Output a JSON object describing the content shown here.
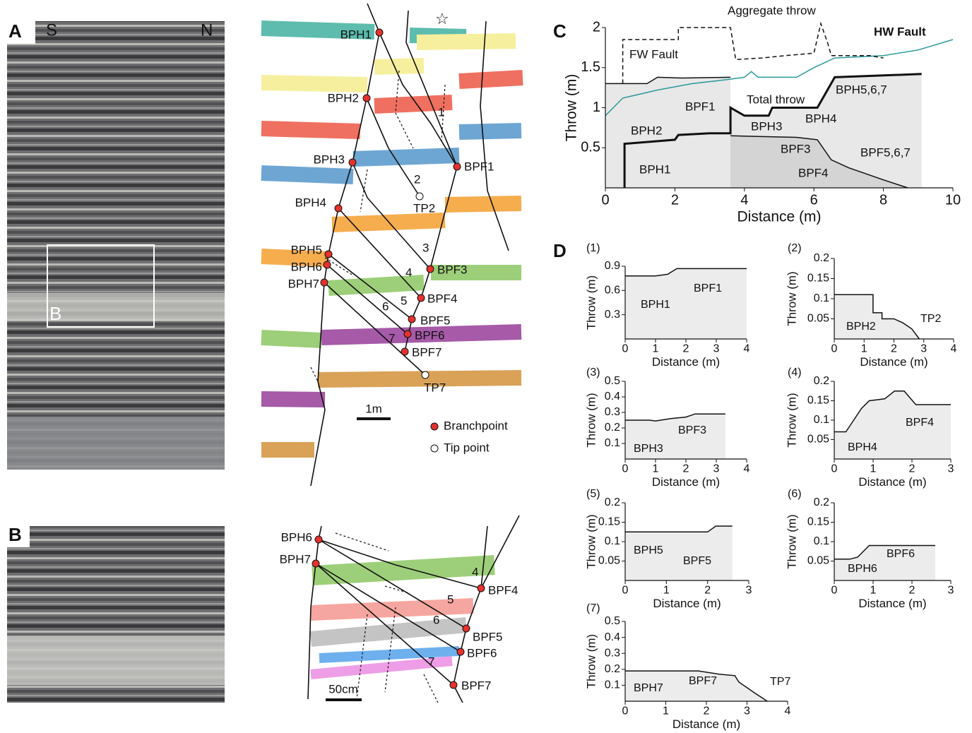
{
  "photo_a": {
    "label": "A",
    "south": "S",
    "north": "N",
    "inset": "B"
  },
  "photo_b": {
    "label": "B"
  },
  "section_a": {
    "points": [
      "BPH1",
      "BPH2",
      "BPH3",
      "BPH4",
      "BPH5",
      "BPH6",
      "BPH7",
      "BPF1",
      "BPF3",
      "BPF4",
      "BPF5",
      "BPF6",
      "BPF7",
      "TP2",
      "TP7"
    ],
    "fault_numbers": [
      "1",
      "2",
      "3",
      "4",
      "5",
      "6",
      "7"
    ],
    "star": "☆",
    "scale": "1m",
    "legend": [
      "Branchpoint",
      "Tip point"
    ]
  },
  "section_b": {
    "points": [
      "BPH6",
      "BPH7",
      "BPF4",
      "BPF5",
      "BPF6",
      "BPF7"
    ],
    "fault_numbers": [
      "4",
      "5",
      "6",
      "7"
    ],
    "scale": "50cm"
  },
  "panel_d_label": "D",
  "chart_data": [
    {
      "type": "line",
      "label": "C",
      "xlabel": "Distance (m)",
      "ylabel": "Throw (m)",
      "xlim": [
        0,
        10
      ],
      "xticks": [
        0,
        2,
        4,
        6,
        8,
        10
      ],
      "ylim": [
        0,
        2
      ],
      "yticks": [
        0.5,
        1,
        1.5,
        2
      ],
      "annotations": [
        "FW Fault",
        "Aggregate throw",
        "HW Fault",
        "Total throw",
        "BPF1",
        "BPH2",
        "BPH3",
        "BPH4",
        "BPF3",
        "BPF4",
        "BPF5,6,7",
        "BPH5,6,7",
        "BPH1"
      ],
      "series": [
        {
          "name": "FW Fault",
          "color": "#111111",
          "fill": "#e8e8e8",
          "x": [
            0,
            1.2,
            1.5,
            2.2,
            3.6
          ],
          "values": [
            1.3,
            1.3,
            1.38,
            1.37,
            1.38
          ]
        },
        {
          "name": "HW Fault",
          "color": "#111111",
          "fill": "#e8e8e8",
          "width": 3,
          "x": [
            0.55,
            0.55,
            2.0,
            2.1,
            3.0,
            3.6,
            3.6,
            4.0,
            4.7,
            4.8,
            6.1,
            6.6,
            9.1
          ],
          "values": [
            0,
            0.55,
            0.6,
            0.66,
            0.68,
            0.68,
            1.0,
            0.9,
            0.9,
            1.0,
            1.0,
            1.38,
            1.42
          ]
        },
        {
          "color": "#111111",
          "fill": "#d4d4d4",
          "x": [
            3.6,
            4.5,
            5.5,
            6.1,
            6.5,
            7.0,
            8.0,
            8.7
          ],
          "values": [
            0.65,
            0.64,
            0.63,
            0.6,
            0.35,
            0.25,
            0.1,
            0
          ]
        },
        {
          "name": "Total throw",
          "color": "#2a9a9a",
          "x": [
            0,
            0.5,
            1.5,
            2.5,
            3.5,
            4.0,
            4.2,
            4.4,
            5.5,
            6.0,
            6.6,
            8.0,
            9.0,
            10.0
          ],
          "values": [
            0.9,
            1.12,
            1.22,
            1.3,
            1.35,
            1.38,
            1.45,
            1.38,
            1.38,
            1.5,
            1.62,
            1.65,
            1.72,
            1.85
          ]
        },
        {
          "name": "Aggregate throw",
          "color": "#111111",
          "dashed": true,
          "x": [
            0.5,
            0.5,
            2.1,
            2.1,
            3.6,
            3.75,
            4.5,
            5.2,
            6.0,
            6.2,
            6.4,
            6.5,
            7.6,
            8.0
          ],
          "values": [
            1.3,
            1.85,
            1.85,
            2.0,
            2.0,
            1.6,
            1.62,
            1.65,
            1.68,
            2.05,
            1.8,
            1.65,
            1.65,
            1.62
          ]
        }
      ]
    },
    {
      "type": "line",
      "label": "(1)",
      "xlabel": "Distance (m)",
      "ylabel": "Throw (m)",
      "xlim": [
        0,
        4
      ],
      "xticks": [
        0,
        1,
        2,
        3,
        4
      ],
      "ylim": [
        0,
        0.9
      ],
      "yticks": [
        0.3,
        0.6,
        0.9
      ],
      "annotations": [
        "BPH1",
        "BPF1"
      ],
      "series": [
        {
          "color": "#111111",
          "fill": "#ececec",
          "x": [
            0,
            1,
            1.4,
            1.7,
            2.5,
            4
          ],
          "values": [
            0.78,
            0.78,
            0.8,
            0.87,
            0.87,
            0.87
          ]
        }
      ]
    },
    {
      "type": "line",
      "label": "(2)",
      "xlabel": "Distance (m)",
      "ylabel": "Throw (m)",
      "xlim": [
        0,
        4
      ],
      "xticks": [
        0,
        1,
        2,
        3,
        4
      ],
      "ylim": [
        0,
        0.2
      ],
      "yticks": [
        0.05,
        0.1,
        0.15,
        0.2
      ],
      "annotations": [
        "BPH2",
        "TP2"
      ],
      "series": [
        {
          "color": "#111111",
          "fill": "#ececec",
          "x": [
            0,
            1.3,
            1.3,
            1.6,
            1.6,
            2.0,
            2.3,
            2.6,
            2.85
          ],
          "values": [
            0.11,
            0.11,
            0.065,
            0.065,
            0.05,
            0.05,
            0.04,
            0.025,
            0
          ]
        }
      ]
    },
    {
      "type": "line",
      "label": "(3)",
      "xlabel": "Distance (m)",
      "ylabel": "Throw (m)",
      "xlim": [
        0,
        4
      ],
      "xticks": [
        0,
        1,
        2,
        3,
        4
      ],
      "ylim": [
        0,
        0.5
      ],
      "yticks": [
        0.1,
        0.2,
        0.3,
        0.4,
        0.5
      ],
      "annotations": [
        "BPH3",
        "BPF3"
      ],
      "series": [
        {
          "color": "#111111",
          "fill": "#ececec",
          "x": [
            0,
            0.8,
            1,
            1.5,
            2,
            2.3,
            3.3
          ],
          "values": [
            0.25,
            0.25,
            0.245,
            0.26,
            0.27,
            0.29,
            0.29
          ]
        }
      ]
    },
    {
      "type": "line",
      "label": "(4)",
      "xlabel": "Distance (m)",
      "ylabel": "Throw (m)",
      "xlim": [
        0,
        3
      ],
      "xticks": [
        0,
        1,
        2,
        3
      ],
      "ylim": [
        0,
        0.2
      ],
      "yticks": [
        0.05,
        0.1,
        0.15,
        0.2
      ],
      "annotations": [
        "BPH4",
        "BPF4"
      ],
      "series": [
        {
          "color": "#111111",
          "fill": "#ececec",
          "x": [
            0,
            0.3,
            0.5,
            0.7,
            0.9,
            1.3,
            1.55,
            1.8,
            2.1,
            3
          ],
          "values": [
            0.07,
            0.07,
            0.1,
            0.13,
            0.15,
            0.155,
            0.175,
            0.175,
            0.14,
            0.14
          ]
        }
      ]
    },
    {
      "type": "line",
      "label": "(5)",
      "xlabel": "Distance (m)",
      "ylabel": "Throw (m)",
      "xlim": [
        0,
        3
      ],
      "xticks": [
        0,
        1,
        2,
        3
      ],
      "ylim": [
        0,
        0.2
      ],
      "yticks": [
        0.05,
        0.1,
        0.15,
        0.2
      ],
      "annotations": [
        "BPH5",
        "BPF5"
      ],
      "series": [
        {
          "color": "#111111",
          "fill": "#ececec",
          "x": [
            0,
            0.8,
            2.0,
            2.2,
            2.6
          ],
          "values": [
            0.125,
            0.125,
            0.125,
            0.14,
            0.14
          ]
        }
      ]
    },
    {
      "type": "line",
      "label": "(6)",
      "xlabel": "Distance (m)",
      "ylabel": "Throw (m)",
      "xlim": [
        0,
        3
      ],
      "xticks": [
        0,
        1,
        2,
        3
      ],
      "ylim": [
        0,
        0.2
      ],
      "yticks": [
        0.05,
        0.1,
        0.15,
        0.2
      ],
      "annotations": [
        "BPH6",
        "BPF6"
      ],
      "series": [
        {
          "color": "#111111",
          "fill": "#ececec",
          "x": [
            0,
            0.4,
            0.6,
            0.9,
            2.6
          ],
          "values": [
            0.055,
            0.055,
            0.06,
            0.09,
            0.09
          ]
        }
      ]
    },
    {
      "type": "line",
      "label": "(7)",
      "xlabel": "Distance (m)",
      "ylabel": "Throw (m)",
      "xlim": [
        0,
        4
      ],
      "xticks": [
        0,
        1,
        2,
        3,
        4
      ],
      "ylim": [
        0,
        0.5
      ],
      "yticks": [
        0.1,
        0.2,
        0.3,
        0.4,
        0.5
      ],
      "annotations": [
        "BPH7",
        "BPF7",
        "TP7"
      ],
      "series": [
        {
          "color": "#111111",
          "fill": "#ececec",
          "x": [
            0,
            1.8,
            2.3,
            2.7,
            2.8,
            3.2,
            3.5
          ],
          "values": [
            0.19,
            0.19,
            0.17,
            0.16,
            0.12,
            0.05,
            0
          ]
        }
      ]
    }
  ]
}
